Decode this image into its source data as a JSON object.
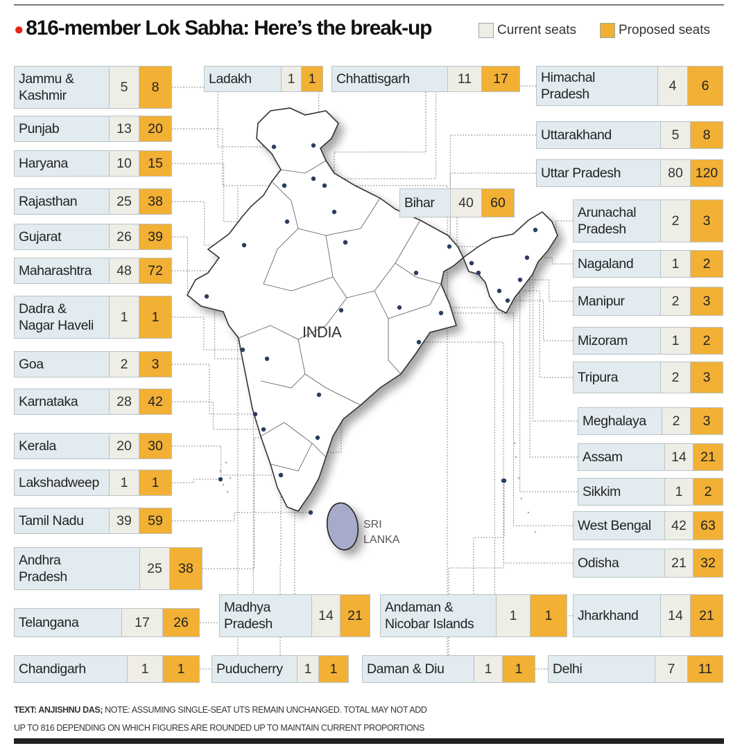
{
  "header": {
    "title": "816-member Lok Sabha: Here’s the break-up",
    "legend_current": "Current seats",
    "legend_proposed": "Proposed seats"
  },
  "colors": {
    "current": "#eeede6",
    "proposed": "#f2b035",
    "name_bg": "#e2ebef",
    "bullet": "#e2261b",
    "map_fill": "#ffffff",
    "map_stroke": "#333333",
    "srilanka": "#a7aac8",
    "marker": "#2c3e60"
  },
  "map": {
    "india_label": "INDIA",
    "srilanka_label_1": "SRI",
    "srilanka_label_2": "LANKA"
  },
  "states": [
    {
      "name": "Jammu &\nKashmir",
      "current": "5",
      "proposed": "8"
    },
    {
      "name": "Punjab",
      "current": "13",
      "proposed": "20"
    },
    {
      "name": "Haryana",
      "current": "10",
      "proposed": "15"
    },
    {
      "name": "Rajasthan",
      "current": "25",
      "proposed": "38"
    },
    {
      "name": "Gujarat",
      "current": "26",
      "proposed": "39"
    },
    {
      "name": "Maharashtra",
      "current": "48",
      "proposed": "72"
    },
    {
      "name": "Dadra &\nNagar Haveli",
      "current": "1",
      "proposed": "1"
    },
    {
      "name": "Goa",
      "current": "2",
      "proposed": "3"
    },
    {
      "name": "Karnataka",
      "current": "28",
      "proposed": "42"
    },
    {
      "name": "Kerala",
      "current": "20",
      "proposed": "30"
    },
    {
      "name": "Lakshadweep",
      "current": "1",
      "proposed": "1"
    },
    {
      "name": "Tamil Nadu",
      "current": "39",
      "proposed": "59"
    },
    {
      "name": "Andhra\nPradesh",
      "current": "25",
      "proposed": "38"
    },
    {
      "name": "Telangana",
      "current": "17",
      "proposed": "26"
    },
    {
      "name": "Chandigarh",
      "current": "1",
      "proposed": "1"
    },
    {
      "name": "Ladakh",
      "current": "1",
      "proposed": "1"
    },
    {
      "name": "Chhattisgarh",
      "current": "11",
      "proposed": "17"
    },
    {
      "name": "Bihar",
      "current": "40",
      "proposed": "60"
    },
    {
      "name": "Madhya\nPradesh",
      "current": "14",
      "proposed": "21"
    },
    {
      "name": "Andaman &\nNicobar Islands",
      "current": "1",
      "proposed": "1"
    },
    {
      "name": "Puducherry",
      "current": "1",
      "proposed": "1"
    },
    {
      "name": "Daman & Diu",
      "current": "1",
      "proposed": "1"
    },
    {
      "name": "Himachal\nPradesh",
      "current": "4",
      "proposed": "6"
    },
    {
      "name": "Uttarakhand",
      "current": "5",
      "proposed": "8"
    },
    {
      "name": "Uttar Pradesh",
      "current": "80",
      "proposed": "120"
    },
    {
      "name": "Arunachal\nPradesh",
      "current": "2",
      "proposed": "3"
    },
    {
      "name": "Nagaland",
      "current": "1",
      "proposed": "2"
    },
    {
      "name": "Manipur",
      "current": "2",
      "proposed": "3"
    },
    {
      "name": "Mizoram",
      "current": "1",
      "proposed": "2"
    },
    {
      "name": "Tripura",
      "current": "2",
      "proposed": "3"
    },
    {
      "name": "Meghalaya",
      "current": "2",
      "proposed": "3"
    },
    {
      "name": "Assam",
      "current": "14",
      "proposed": "21"
    },
    {
      "name": "Sikkim",
      "current": "1",
      "proposed": "2"
    },
    {
      "name": "West Bengal",
      "current": "42",
      "proposed": "63"
    },
    {
      "name": "Odisha",
      "current": "21",
      "proposed": "32"
    },
    {
      "name": "Jharkhand",
      "current": "14",
      "proposed": "21"
    },
    {
      "name": "Delhi",
      "current": "7",
      "proposed": "11"
    }
  ],
  "footer": {
    "credit": "TEXT: ANJISHNU DAS;",
    "note_1": " NOTE: ASSUMING SINGLE-SEAT UTS REMAIN UNCHANGED. TOTAL MAY NOT ADD",
    "note_2": "UP TO 816 DEPENDING ON WHICH FIGURES ARE ROUNDED UP TO MAINTAIN CURRENT PROPORTIONS"
  }
}
